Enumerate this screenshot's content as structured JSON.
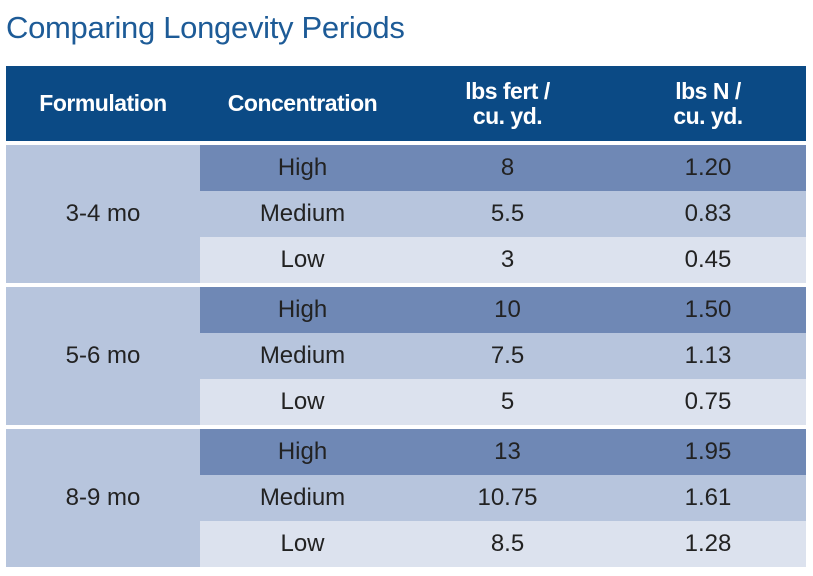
{
  "title": "Comparing Longevity Periods",
  "colors": {
    "header": "#0b4a85",
    "high": "#6f88b5",
    "medium": "#b7c5dd",
    "low": "#dce2ee",
    "title": "#1d5b97"
  },
  "headers": [
    "Formulation",
    "Concentration",
    "lbs fert /\ncu. yd.",
    "lbs N /\ncu. yd."
  ],
  "groups": [
    {
      "formulation": "3-4 mo",
      "rows": [
        [
          "High",
          "8",
          "1.20"
        ],
        [
          "Medium",
          "5.5",
          "0.83"
        ],
        [
          "Low",
          "3",
          "0.45"
        ]
      ]
    },
    {
      "formulation": "5-6 mo",
      "rows": [
        [
          "High",
          "10",
          "1.50"
        ],
        [
          "Medium",
          "7.5",
          "1.13"
        ],
        [
          "Low",
          "5",
          "0.75"
        ]
      ]
    },
    {
      "formulation": "8-9 mo",
      "rows": [
        [
          "High",
          "13",
          "1.95"
        ],
        [
          "Medium",
          "10.75",
          "1.61"
        ],
        [
          "Low",
          "8.5",
          "1.28"
        ]
      ]
    }
  ]
}
